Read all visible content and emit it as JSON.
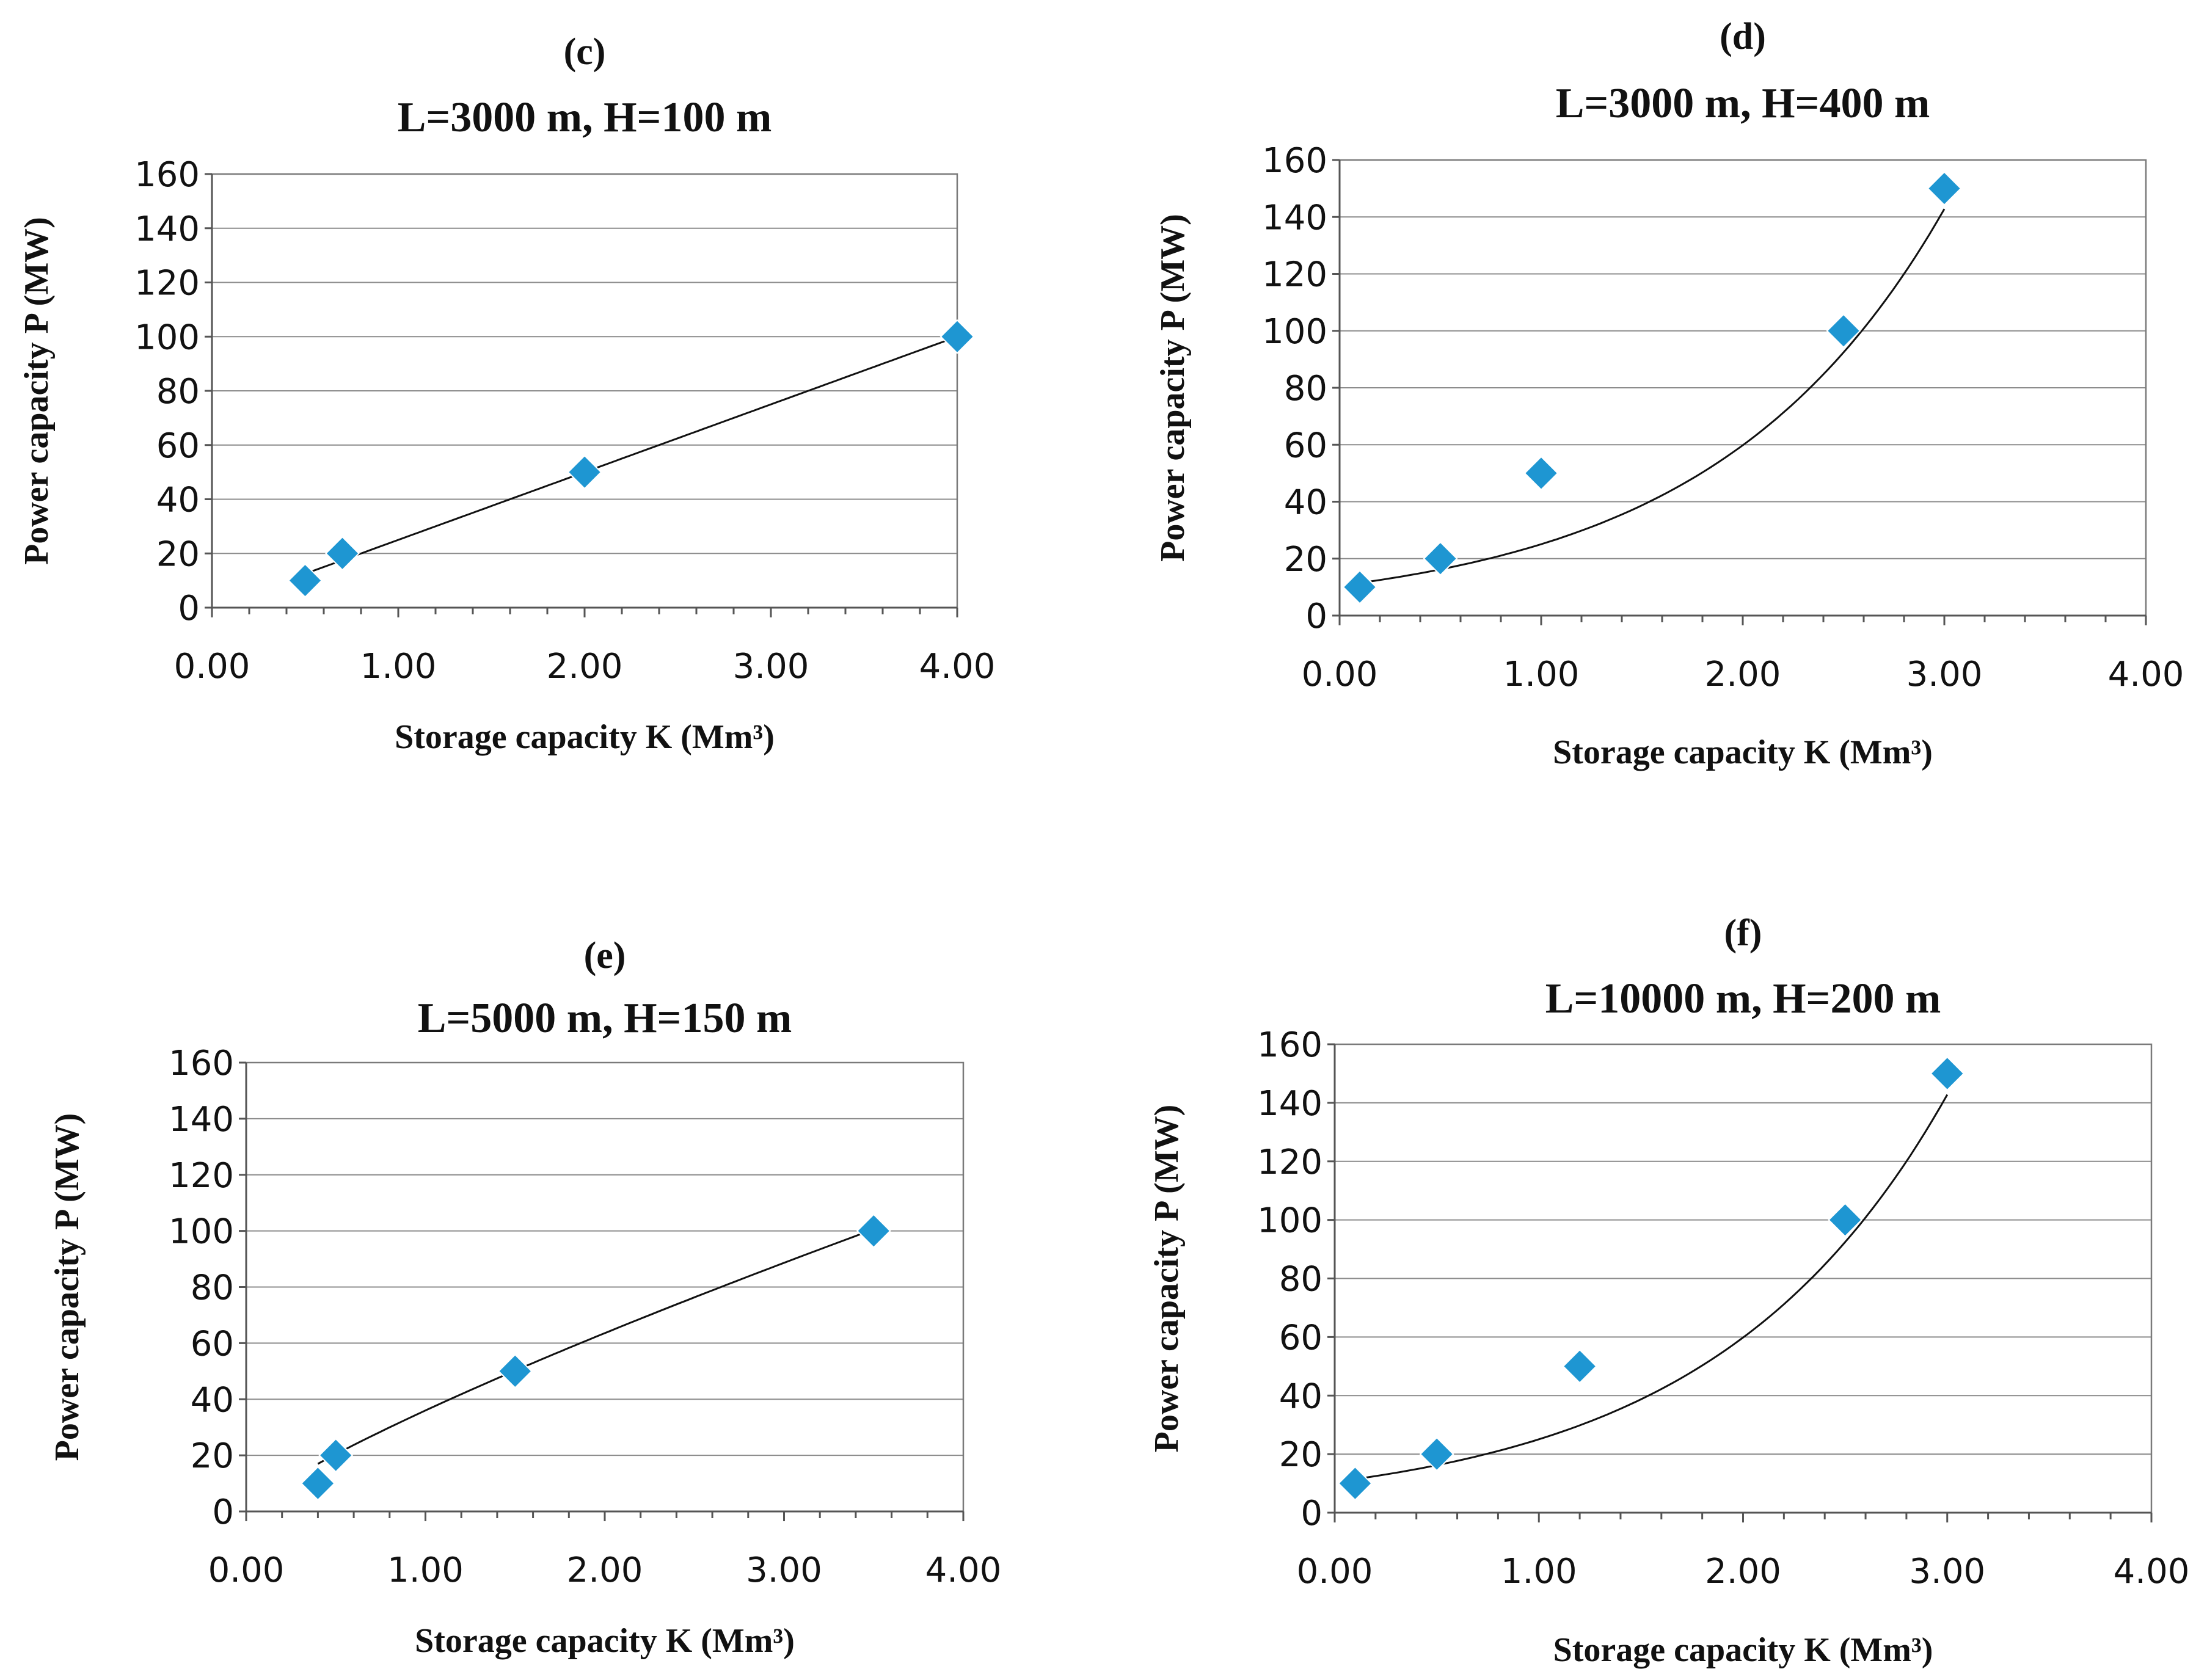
{
  "figure": {
    "marker_color": "#1E96D2",
    "line_color": "#111111",
    "grid_color": "#8C8C8C"
  },
  "chart_data": [
    {
      "type": "scatter",
      "panel": "(c)",
      "title": "L=3000 m, H=100 m",
      "xlabel": "Storage capacity K (Mm³)",
      "ylabel": "Power capacity P (MW)",
      "xlim": [
        0,
        4
      ],
      "ylim": [
        0,
        160
      ],
      "xticks": [
        0,
        1,
        2,
        3,
        4
      ],
      "xtick_labels": [
        "0.00",
        "1.00",
        "2.00",
        "3.00",
        "4.00"
      ],
      "yticks": [
        0,
        20,
        40,
        60,
        80,
        100,
        120,
        140,
        160
      ],
      "ytick_labels": [
        "0",
        "20",
        "40",
        "60",
        "80",
        "100",
        "120",
        "140",
        "160"
      ],
      "grid": true,
      "legend": "none",
      "points": [
        {
          "x": 0.5,
          "y": 10
        },
        {
          "x": 0.7,
          "y": 20
        },
        {
          "x": 2.0,
          "y": 50
        },
        {
          "x": 4.0,
          "y": 100
        }
      ],
      "trendline": {
        "type": "power",
        "a": 25.0,
        "b": 1.0,
        "x_start": 0.5,
        "x_end": 4.0
      }
    },
    {
      "type": "scatter",
      "panel": "(d)",
      "title": "L=3000 m, H=400 m",
      "xlabel": "Storage capacity K (Mm³)",
      "ylabel": "Power capacity P (MW)",
      "xlim": [
        0,
        4
      ],
      "ylim": [
        0,
        160
      ],
      "xticks": [
        0,
        1,
        2,
        3,
        4
      ],
      "xtick_labels": [
        "0.00",
        "1.00",
        "2.00",
        "3.00",
        "4.00"
      ],
      "yticks": [
        0,
        20,
        40,
        60,
        80,
        100,
        120,
        140,
        160
      ],
      "ytick_labels": [
        "0",
        "20",
        "40",
        "60",
        "80",
        "100",
        "120",
        "140",
        "160"
      ],
      "grid": true,
      "legend": "none",
      "points": [
        {
          "x": 0.1,
          "y": 10
        },
        {
          "x": 0.5,
          "y": 20
        },
        {
          "x": 1.0,
          "y": 50
        },
        {
          "x": 2.5,
          "y": 100
        },
        {
          "x": 3.0,
          "y": 150
        }
      ],
      "trendline": {
        "type": "exponential",
        "a": 10.5,
        "b": 0.87,
        "x_start": 0.1,
        "x_end": 3.0
      }
    },
    {
      "type": "scatter",
      "panel": "(e)",
      "title": "L=5000 m, H=150 m",
      "xlabel": "Storage capacity K (Mm³)",
      "ylabel": "Power capacity P (MW)",
      "xlim": [
        0,
        4
      ],
      "ylim": [
        0,
        160
      ],
      "xticks": [
        0,
        1,
        2,
        3,
        4
      ],
      "xtick_labels": [
        "0.00",
        "1.00",
        "2.00",
        "3.00",
        "4.00"
      ],
      "yticks": [
        0,
        20,
        40,
        60,
        80,
        100,
        120,
        140,
        160
      ],
      "ytick_labels": [
        "0",
        "20",
        "40",
        "60",
        "80",
        "100",
        "120",
        "140",
        "160"
      ],
      "grid": true,
      "legend": "none",
      "points": [
        {
          "x": 0.4,
          "y": 10
        },
        {
          "x": 0.5,
          "y": 20
        },
        {
          "x": 1.5,
          "y": 50
        },
        {
          "x": 3.5,
          "y": 100
        }
      ],
      "trendline": {
        "type": "power",
        "a": 36.0,
        "b": 0.82,
        "x_start": 0.4,
        "x_end": 3.5
      }
    },
    {
      "type": "scatter",
      "panel": "(f)",
      "title": "L=10000 m, H=200 m",
      "xlabel": "Storage capacity K (Mm³)",
      "ylabel": "Power capacity P (MW)",
      "xlim": [
        0,
        4
      ],
      "ylim": [
        0,
        160
      ],
      "xticks": [
        0,
        1,
        2,
        3,
        4
      ],
      "xtick_labels": [
        "0.00",
        "1.00",
        "2.00",
        "3.00",
        "4.00"
      ],
      "yticks": [
        0,
        20,
        40,
        60,
        80,
        100,
        120,
        140,
        160
      ],
      "ytick_labels": [
        "0",
        "20",
        "40",
        "60",
        "80",
        "100",
        "120",
        "140",
        "160"
      ],
      "grid": true,
      "legend": "none",
      "points": [
        {
          "x": 0.1,
          "y": 10
        },
        {
          "x": 0.5,
          "y": 20
        },
        {
          "x": 1.2,
          "y": 50
        },
        {
          "x": 2.5,
          "y": 100
        },
        {
          "x": 3.0,
          "y": 150
        }
      ],
      "trendline": {
        "type": "exponential",
        "a": 10.5,
        "b": 0.87,
        "x_start": 0.1,
        "x_end": 3.0
      }
    }
  ]
}
